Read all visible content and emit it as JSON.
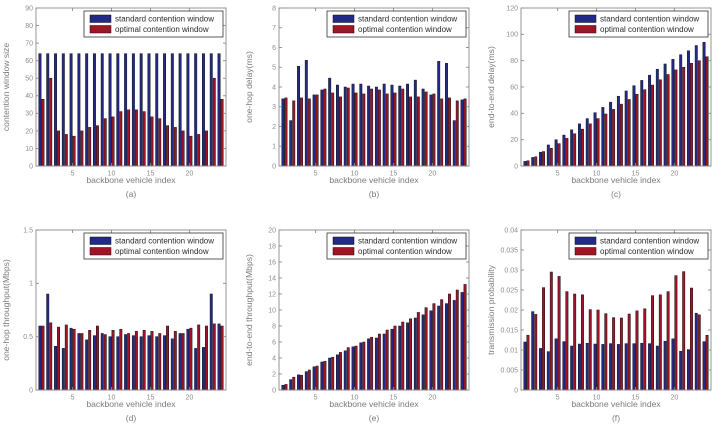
{
  "figure": {
    "background": "#ffffff"
  },
  "colors": {
    "standard": "#232a85",
    "optimal": "#a01426",
    "bar_edge": "#14141c",
    "axis": "#8a8a8a",
    "tick_text": "#8c8c8c",
    "label_text": "#7a7a7a",
    "legend_text": "#2b2b2b",
    "legend_border": "#333333"
  },
  "legend": {
    "standard": "standard contention window",
    "optimal": "optimal contention window"
  },
  "chart_data": [
    {
      "type": "bar",
      "label": "(a)",
      "xlabel": "backbone vehicle index",
      "ylabel": "contention window size",
      "ylim": [
        0,
        90
      ],
      "yticks": [
        0,
        10,
        20,
        30,
        40,
        50,
        60,
        70,
        80,
        90
      ],
      "xticks": [
        5,
        10,
        15,
        20
      ],
      "categories": [
        1,
        2,
        3,
        4,
        5,
        6,
        7,
        8,
        9,
        10,
        11,
        12,
        13,
        14,
        15,
        16,
        17,
        18,
        19,
        20,
        21,
        22,
        23,
        24
      ],
      "legend_position": "top-right",
      "grid": false,
      "series": [
        {
          "name": "standard contention window",
          "color_key": "standard",
          "values": [
            64,
            64,
            64,
            64,
            64,
            64,
            64,
            64,
            64,
            64,
            64,
            64,
            64,
            64,
            64,
            64,
            64,
            64,
            64,
            64,
            64,
            64,
            64,
            64
          ]
        },
        {
          "name": "optimal contention window",
          "color_key": "optimal",
          "values": [
            38,
            50,
            20,
            18,
            17,
            20,
            22,
            23,
            27,
            28,
            31,
            32,
            32,
            31,
            28,
            27,
            23,
            22,
            20,
            17,
            18,
            20,
            50,
            38
          ]
        }
      ]
    },
    {
      "type": "bar",
      "label": "(b)",
      "xlabel": "backbone vehicle index",
      "ylabel": "one-hop delay(ms)",
      "ylim": [
        0,
        8
      ],
      "yticks": [
        0,
        1,
        2,
        3,
        4,
        5,
        6,
        7,
        8
      ],
      "xticks": [
        5,
        10,
        15,
        20
      ],
      "categories": [
        1,
        2,
        3,
        4,
        5,
        6,
        7,
        8,
        9,
        10,
        11,
        12,
        13,
        14,
        15,
        16,
        17,
        18,
        19,
        20,
        21,
        22,
        23,
        24
      ],
      "legend_position": "top-right",
      "grid": false,
      "series": [
        {
          "name": "standard contention window",
          "color_key": "standard",
          "values": [
            3.4,
            2.3,
            5.05,
            5.35,
            3.6,
            3.85,
            4.45,
            4.1,
            4.0,
            4.15,
            4.15,
            4.05,
            4.0,
            4.15,
            4.1,
            4.05,
            4.15,
            4.35,
            3.9,
            3.6,
            5.3,
            5.2,
            2.3,
            3.35
          ]
        },
        {
          "name": "optimal contention window",
          "color_key": "optimal",
          "values": [
            3.45,
            3.3,
            3.45,
            3.4,
            3.6,
            3.9,
            3.7,
            3.5,
            3.95,
            3.7,
            3.65,
            3.9,
            3.85,
            3.65,
            3.7,
            3.9,
            3.5,
            3.5,
            3.75,
            3.65,
            3.4,
            3.45,
            3.3,
            3.4
          ]
        }
      ]
    },
    {
      "type": "bar",
      "label": "(c)",
      "xlabel": "backbone vehicle index",
      "ylabel": "end-to-end delay(ms)",
      "ylim": [
        0,
        120
      ],
      "yticks": [
        0,
        20,
        40,
        60,
        80,
        100,
        120
      ],
      "xticks": [
        5,
        10,
        15,
        20
      ],
      "categories": [
        1,
        2,
        3,
        4,
        5,
        6,
        7,
        8,
        9,
        10,
        11,
        12,
        13,
        14,
        15,
        16,
        17,
        18,
        19,
        20,
        21,
        22,
        23,
        24
      ],
      "legend_position": "top-right",
      "grid": false,
      "series": [
        {
          "name": "standard contention window",
          "color_key": "standard",
          "values": [
            3.5,
            6.5,
            10.5,
            16,
            20,
            23.5,
            27.5,
            32,
            36,
            40.5,
            44.5,
            48.5,
            53,
            57,
            61,
            65,
            69,
            73.5,
            77.5,
            81,
            84.5,
            87.5,
            91.5,
            94
          ]
        },
        {
          "name": "optimal contention window",
          "color_key": "optimal",
          "values": [
            4,
            7,
            11,
            13.5,
            17,
            21,
            24.5,
            28,
            32,
            36,
            39.5,
            43,
            47,
            50.5,
            54.5,
            58,
            61.5,
            65.5,
            69.5,
            73,
            75,
            78,
            80,
            83
          ]
        }
      ]
    },
    {
      "type": "bar",
      "label": "(d)",
      "xlabel": "backbone vehicle index",
      "ylabel": "one-hop throughput(Mbps)",
      "ylim": [
        0,
        1.5
      ],
      "yticks": [
        0,
        0.5,
        1,
        1.5
      ],
      "xticks": [
        5,
        10,
        15,
        20
      ],
      "categories": [
        1,
        2,
        3,
        4,
        5,
        6,
        7,
        8,
        9,
        10,
        11,
        12,
        13,
        14,
        15,
        16,
        17,
        18,
        19,
        20,
        21,
        22,
        23,
        24
      ],
      "legend_position": "top-right",
      "grid": false,
      "series": [
        {
          "name": "standard contention window",
          "color_key": "standard",
          "values": [
            0.6,
            0.9,
            0.41,
            0.39,
            0.58,
            0.53,
            0.47,
            0.51,
            0.53,
            0.5,
            0.5,
            0.52,
            0.51,
            0.5,
            0.51,
            0.5,
            0.51,
            0.48,
            0.53,
            0.57,
            0.39,
            0.4,
            0.9,
            0.62
          ]
        },
        {
          "name": "optimal contention window",
          "color_key": "optimal",
          "values": [
            0.6,
            0.63,
            0.59,
            0.61,
            0.57,
            0.53,
            0.56,
            0.6,
            0.52,
            0.56,
            0.57,
            0.53,
            0.55,
            0.56,
            0.55,
            0.53,
            0.6,
            0.55,
            0.53,
            0.58,
            0.61,
            0.6,
            0.62,
            0.6
          ]
        }
      ]
    },
    {
      "type": "bar",
      "label": "(e)",
      "xlabel": "backbone vehicle index",
      "ylabel": "end-to-end throughput(Mbps)",
      "ylim": [
        0,
        20
      ],
      "yticks": [
        0,
        2,
        4,
        6,
        8,
        10,
        12,
        14,
        16,
        18,
        20
      ],
      "xticks": [
        5,
        10,
        15,
        20
      ],
      "categories": [
        1,
        2,
        3,
        4,
        5,
        6,
        7,
        8,
        9,
        10,
        11,
        12,
        13,
        14,
        15,
        16,
        17,
        18,
        19,
        20,
        21,
        22,
        23,
        24
      ],
      "legend_position": "top-right",
      "grid": false,
      "series": [
        {
          "name": "standard contention window",
          "color_key": "standard",
          "values": [
            0.6,
            1.3,
            1.9,
            2.3,
            2.9,
            3.5,
            4.0,
            4.4,
            4.9,
            5.4,
            5.9,
            6.4,
            6.5,
            7.0,
            7.6,
            8.0,
            8.4,
            9.0,
            9.4,
            9.9,
            10.5,
            10.8,
            11.2,
            12.2
          ]
        },
        {
          "name": "optimal contention window",
          "color_key": "optimal",
          "values": [
            0.7,
            1.6,
            1.85,
            2.5,
            3.0,
            3.6,
            4.1,
            4.7,
            5.3,
            5.5,
            6.0,
            6.6,
            7.0,
            7.5,
            8.0,
            8.5,
            8.9,
            9.7,
            10.3,
            10.8,
            11.3,
            12.0,
            12.5,
            13.2
          ]
        }
      ]
    },
    {
      "type": "bar",
      "label": "(f)",
      "xlabel": "backbone vehicle index",
      "ylabel": "transmission probability",
      "ylim": [
        0,
        0.04
      ],
      "yticks": [
        0,
        0.005,
        0.01,
        0.015,
        0.02,
        0.025,
        0.03,
        0.035,
        0.04
      ],
      "xticks": [
        5,
        10,
        15,
        20
      ],
      "categories": [
        1,
        2,
        3,
        4,
        5,
        6,
        7,
        8,
        9,
        10,
        11,
        12,
        13,
        14,
        15,
        16,
        17,
        18,
        19,
        20,
        21,
        22,
        23,
        24
      ],
      "legend_position": "top-right",
      "grid": false,
      "series": [
        {
          "name": "standard contention window",
          "color_key": "standard",
          "values": [
            0.012,
            0.0196,
            0.0104,
            0.0096,
            0.0128,
            0.0121,
            0.011,
            0.0115,
            0.0117,
            0.0115,
            0.0114,
            0.0116,
            0.0114,
            0.0116,
            0.0116,
            0.0117,
            0.0116,
            0.011,
            0.0122,
            0.0128,
            0.0097,
            0.0101,
            0.0192,
            0.0121
          ]
        },
        {
          "name": "optimal contention window",
          "color_key": "optimal",
          "values": [
            0.0137,
            0.0189,
            0.0256,
            0.0295,
            0.0284,
            0.0246,
            0.024,
            0.0238,
            0.0201,
            0.02,
            0.0191,
            0.0181,
            0.018,
            0.019,
            0.0198,
            0.0203,
            0.0236,
            0.0238,
            0.0246,
            0.0286,
            0.0296,
            0.0255,
            0.0188,
            0.0137
          ]
        }
      ]
    }
  ]
}
